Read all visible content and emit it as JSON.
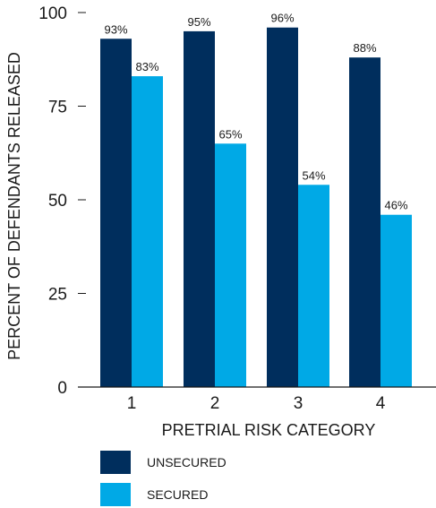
{
  "chart_data": {
    "type": "bar",
    "xlabel": "PRETRIAL RISK CATEGORY",
    "ylabel": "PERCENT OF DEFENDANTS RELEASED",
    "categories": [
      "1",
      "2",
      "3",
      "4"
    ],
    "ylim": [
      0,
      100
    ],
    "yticks": [
      0,
      25,
      50,
      75,
      100
    ],
    "grid": false,
    "legend_position": "bottom-left",
    "series": [
      {
        "name": "UNSECURED",
        "color": "#002e5d",
        "values": [
          93,
          95,
          96,
          88
        ],
        "labels": [
          "93%",
          "95%",
          "96%",
          "88%"
        ]
      },
      {
        "name": "SECURED",
        "color": "#00a9e6",
        "values": [
          83,
          65,
          54,
          46
        ],
        "labels": [
          "83%",
          "65%",
          "54%",
          "46%"
        ]
      }
    ]
  }
}
